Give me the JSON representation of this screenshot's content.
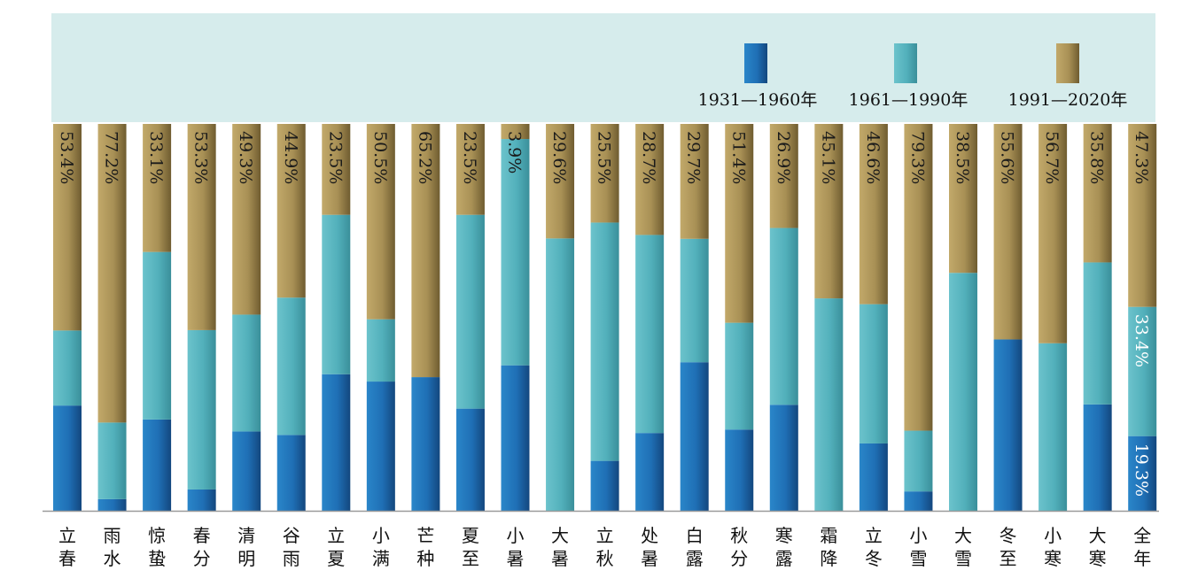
{
  "chart_data": {
    "type": "bar",
    "stacked": true,
    "orientation": "vertical",
    "ylim": [
      0,
      100
    ],
    "legend_position": "top-right",
    "categories": [
      "立春",
      "雨水",
      "惊蛰",
      "春分",
      "清明",
      "谷雨",
      "立夏",
      "小满",
      "芒种",
      "夏至",
      "小暑",
      "大暑",
      "立秋",
      "处暑",
      "白露",
      "秋分",
      "寒露",
      "霜降",
      "立冬",
      "小雪",
      "大雪",
      "冬至",
      "小寒",
      "大寒",
      "全年"
    ],
    "series": [
      {
        "name": "1931—1960年",
        "color": "#1f6fb5",
        "values": [
          27.2,
          3.0,
          23.6,
          5.5,
          20.5,
          19.6,
          35.3,
          33.4,
          34.4,
          26.4,
          37.6,
          0,
          12.9,
          20.1,
          38.4,
          21.0,
          27.4,
          0,
          17.4,
          5.0,
          0,
          44.2,
          0,
          27.5,
          19.3
        ],
        "labels": [
          "",
          "",
          "",
          "",
          "",
          "",
          "",
          "",
          "",
          "",
          "",
          "",
          "",
          "",
          "",
          "",
          "",
          "",
          "",
          "",
          "",
          "",
          "",
          "",
          "19.3%"
        ]
      },
      {
        "name": "1961—1990年",
        "color": "#52b0bb",
        "values": [
          19.4,
          19.8,
          43.3,
          41.2,
          30.2,
          35.5,
          41.2,
          16.1,
          0,
          50.1,
          58.5,
          70.4,
          61.6,
          51.2,
          31.9,
          27.6,
          45.7,
          54.9,
          36.0,
          15.7,
          61.5,
          0,
          43.3,
          36.7,
          33.4
        ],
        "labels": [
          "",
          "",
          "",
          "",
          "",
          "",
          "",
          "",
          "",
          "",
          "",
          "",
          "",
          "",
          "",
          "",
          "",
          "",
          "",
          "",
          "",
          "",
          "",
          "",
          "33.4%"
        ]
      },
      {
        "name": "1991—2020年",
        "color": "#a89055",
        "values": [
          53.4,
          77.2,
          33.1,
          53.3,
          49.3,
          44.9,
          23.5,
          50.5,
          65.2,
          23.5,
          3.9,
          29.6,
          25.5,
          28.7,
          29.7,
          51.4,
          26.9,
          45.1,
          46.6,
          79.3,
          38.5,
          55.6,
          56.7,
          35.8,
          47.3
        ],
        "labels": [
          "53.4%",
          "77.2%",
          "33.1%",
          "53.3%",
          "49.3%",
          "44.9%",
          "23.5%",
          "50.5%",
          "65.2%",
          "23.5%",
          "3.9%",
          "29.6%",
          "25.5%",
          "28.7%",
          "29.7%",
          "51.4%",
          "26.9%",
          "45.1%",
          "46.6%",
          "79.3%",
          "38.5%",
          "55.6%",
          "56.7%",
          "35.8%",
          "47.3%"
        ]
      }
    ]
  }
}
